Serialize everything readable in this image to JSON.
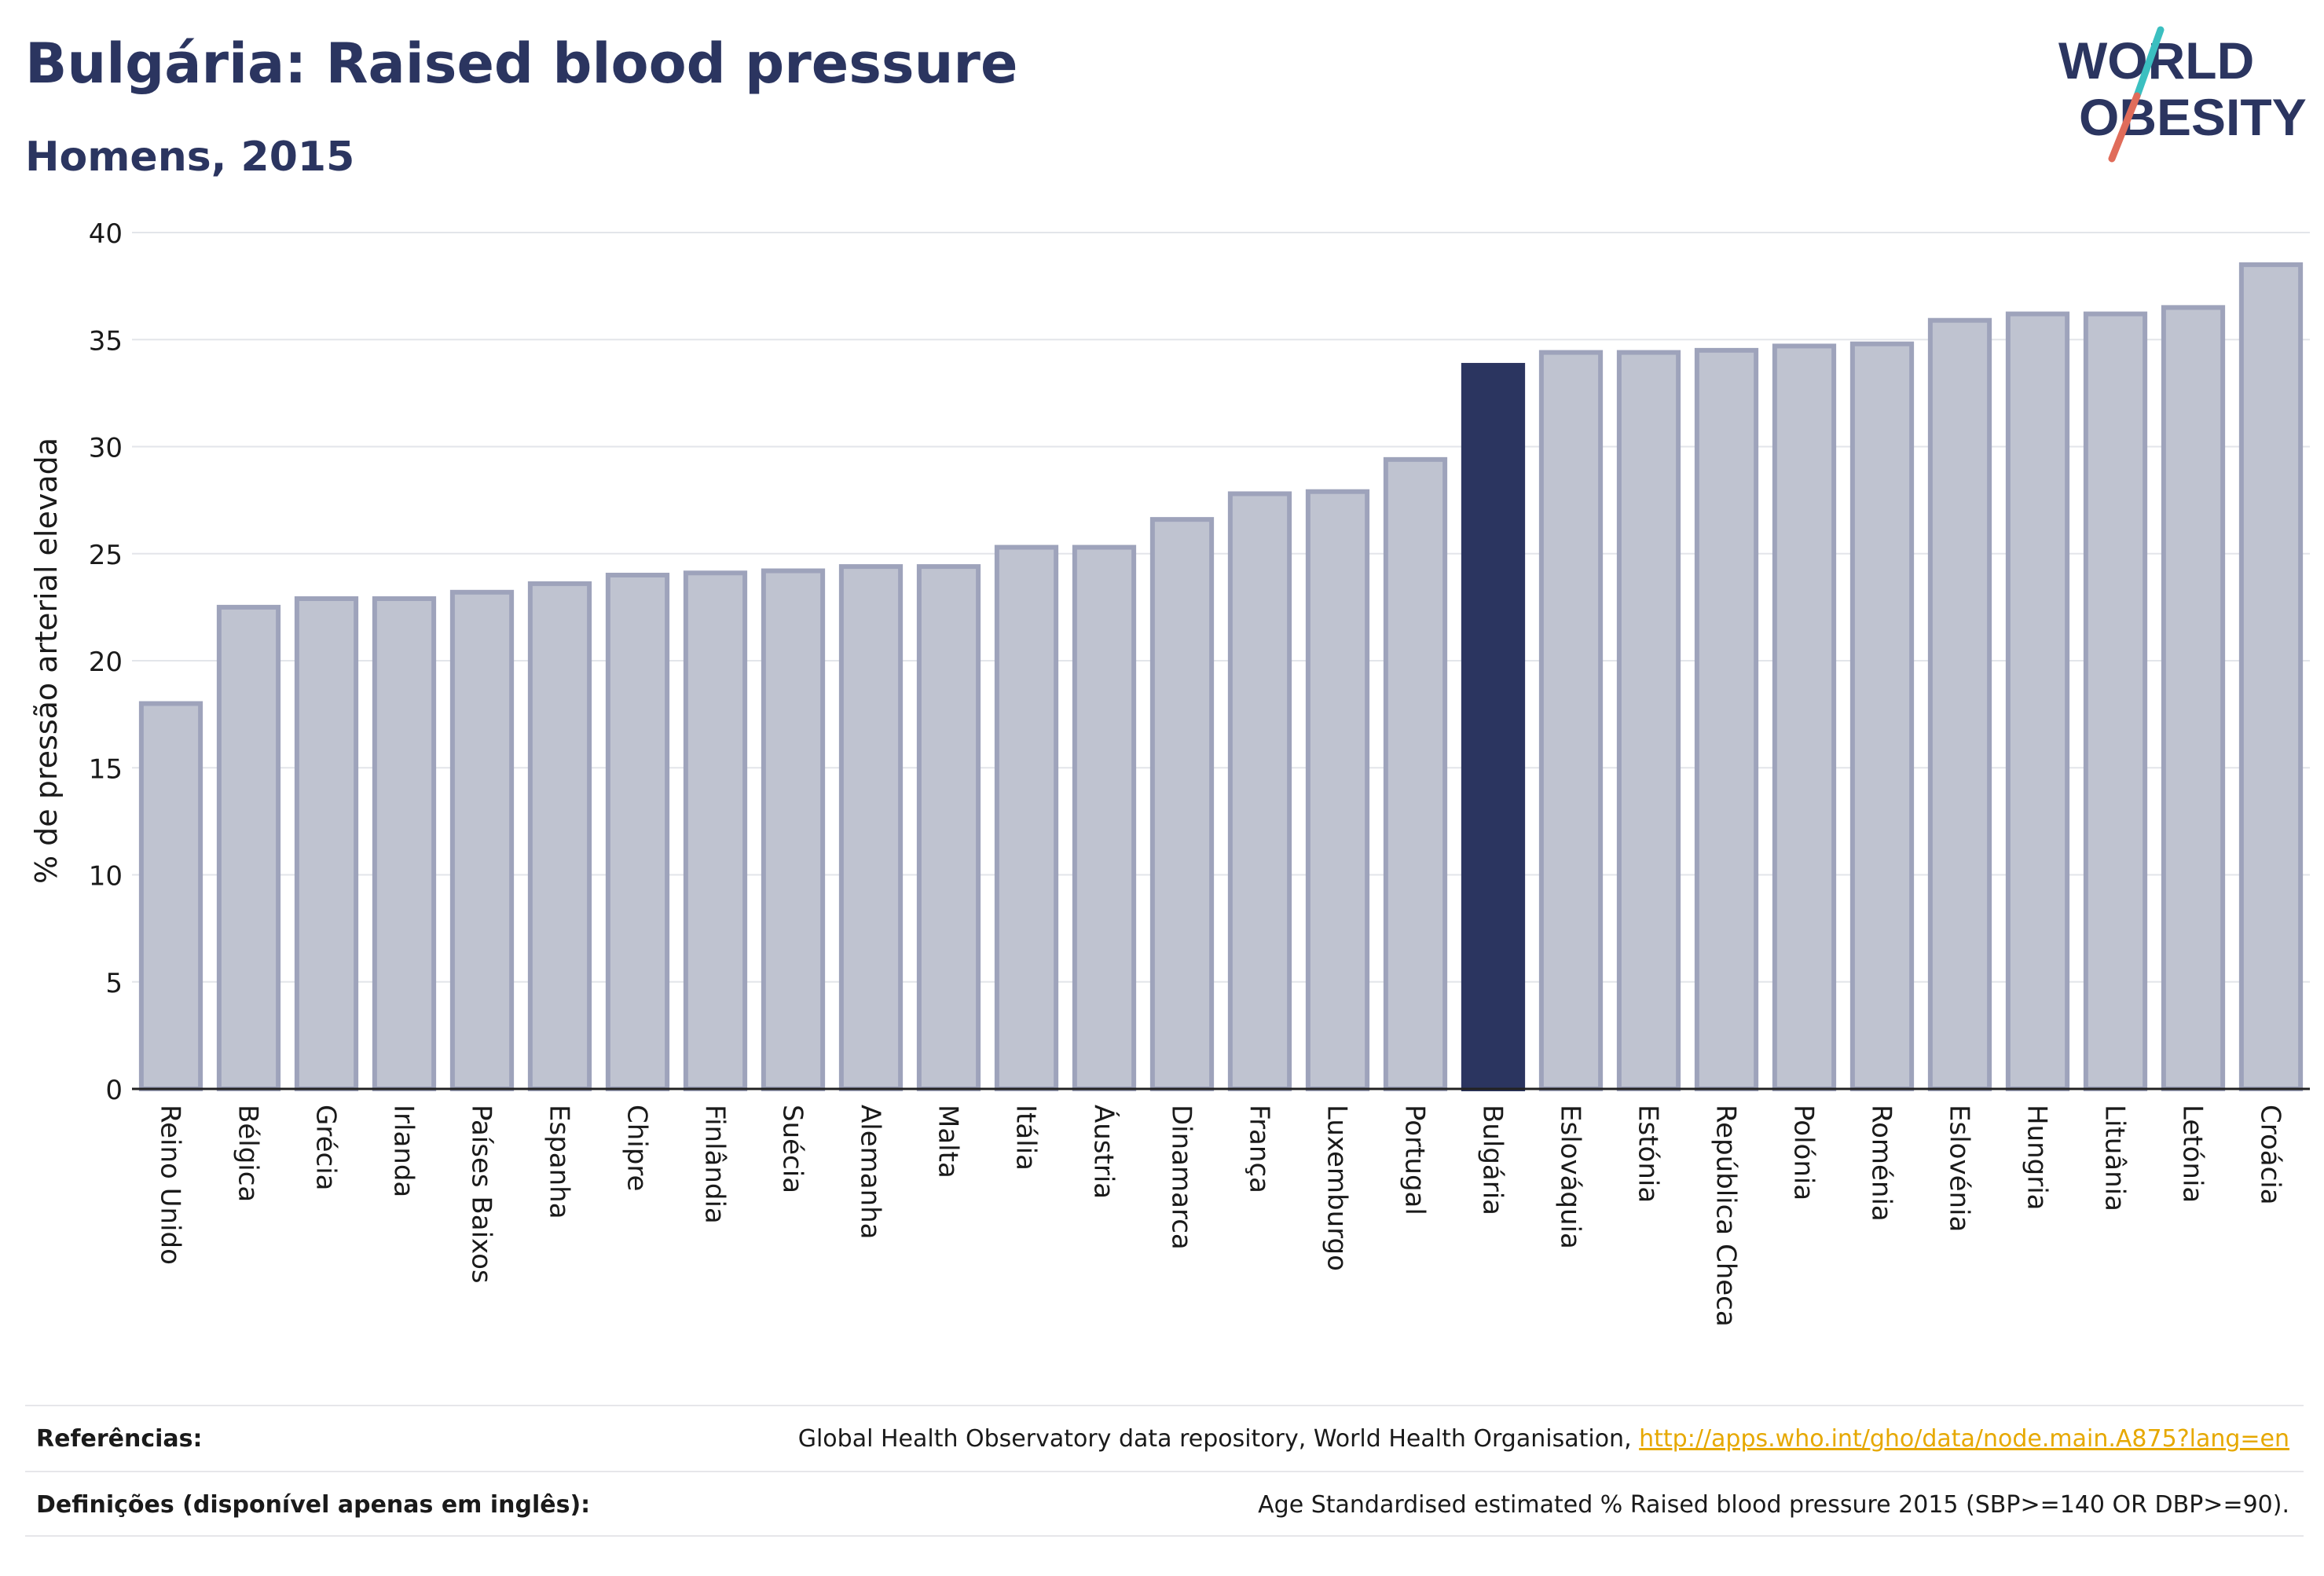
{
  "title": "Bulgária: Raised blood pressure",
  "subtitle": "Homens, 2015",
  "logo": {
    "line1": "WORLD",
    "line2": "OBESITY",
    "accent_teal": "#3bbfc0",
    "accent_coral": "#e06c5a",
    "color": "#2b3560"
  },
  "colors": {
    "bar": "#bfc3d0",
    "bar_border": "#9ea3bb",
    "highlight": "#2b3560",
    "grid": "#e3e5ea"
  },
  "chart_data": {
    "type": "bar",
    "ylabel": "% de pressão arterial elevada",
    "ylim": [
      0,
      40
    ],
    "yticks": [
      0,
      5,
      10,
      15,
      20,
      25,
      30,
      35,
      40
    ],
    "highlight": "Bulgária",
    "categories": [
      "Reino Unido",
      "Bélgica",
      "Grécia",
      "Irlanda",
      "Países Baixos",
      "Espanha",
      "Chipre",
      "Finlândia",
      "Suécia",
      "Alemanha",
      "Malta",
      "Itália",
      "Áustria",
      "Dinamarca",
      "França",
      "Luxemburgo",
      "Portugal",
      "Bulgária",
      "Eslováquia",
      "Estónia",
      "República Checa",
      "Polónia",
      "Roménia",
      "Eslovénia",
      "Hungria",
      "Lituânia",
      "Letónia",
      "Croácia"
    ],
    "values": [
      18.0,
      22.5,
      22.9,
      22.9,
      23.2,
      23.6,
      24.0,
      24.1,
      24.2,
      24.4,
      24.4,
      25.3,
      25.3,
      26.6,
      27.8,
      27.9,
      29.4,
      33.8,
      34.4,
      34.4,
      34.5,
      34.7,
      34.8,
      35.9,
      36.2,
      36.2,
      36.5,
      38.5
    ]
  },
  "footer": {
    "references_label": "Referências:",
    "references_text": "Global Health Observatory data repository, World Health Organisation, ",
    "references_link": "http://apps.who.int/gho/data/node.main.A875?lang=en",
    "definitions_label": "Definições (disponível apenas em inglês):",
    "definitions_text": "Age Standardised estimated % Raised blood pressure 2015 (SBP>=140 OR DBP>=90)."
  }
}
